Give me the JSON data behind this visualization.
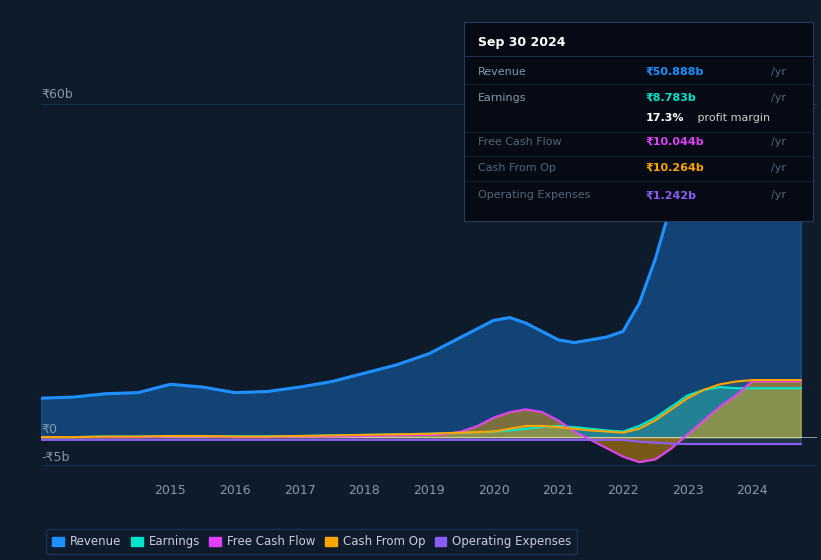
{
  "bg_color": "#0d1b2a",
  "plot_bg_color": "#0d1b2a",
  "revenue_color": "#1e90ff",
  "earnings_color": "#00e5cc",
  "free_cash_flow_color": "#e040fb",
  "cash_from_op_color": "#ffa500",
  "operating_expenses_color": "#8b5cf6",
  "grid_color": "#1e3a5f",
  "years": [
    2013.0,
    2013.5,
    2014.0,
    2014.5,
    2015.0,
    2015.5,
    2016.0,
    2016.5,
    2017.0,
    2017.5,
    2018.0,
    2018.5,
    2019.0,
    2019.25,
    2019.5,
    2019.75,
    2020.0,
    2020.25,
    2020.5,
    2020.75,
    2021.0,
    2021.25,
    2021.5,
    2021.75,
    2022.0,
    2022.25,
    2022.5,
    2022.75,
    2023.0,
    2023.25,
    2023.5,
    2023.75,
    2024.0,
    2024.5,
    2024.75
  ],
  "revenue": [
    7.0,
    7.2,
    7.8,
    8.0,
    9.5,
    9.0,
    8.0,
    8.2,
    9.0,
    10.0,
    11.5,
    13.0,
    15.0,
    16.5,
    18.0,
    19.5,
    21.0,
    21.5,
    20.5,
    19.0,
    17.5,
    17.0,
    17.5,
    18.0,
    19.0,
    24.0,
    32.0,
    42.0,
    50.0,
    54.0,
    53.0,
    52.0,
    50.888,
    50.888,
    50.888
  ],
  "earnings": [
    0.0,
    0.0,
    0.1,
    0.1,
    0.2,
    0.2,
    0.15,
    0.15,
    0.2,
    0.3,
    0.4,
    0.5,
    0.6,
    0.7,
    0.8,
    0.9,
    1.0,
    1.2,
    1.5,
    1.8,
    2.0,
    1.8,
    1.5,
    1.2,
    1.0,
    2.0,
    3.5,
    5.5,
    7.5,
    8.5,
    9.0,
    8.8,
    8.783,
    8.783,
    8.783
  ],
  "free_cash_flow": [
    0.0,
    0.0,
    0.0,
    0.0,
    0.1,
    0.1,
    0.0,
    0.0,
    0.1,
    0.1,
    0.2,
    0.3,
    0.4,
    0.5,
    1.0,
    2.0,
    3.5,
    4.5,
    5.0,
    4.5,
    3.0,
    1.0,
    -0.5,
    -2.0,
    -3.5,
    -4.5,
    -4.0,
    -2.0,
    0.5,
    3.0,
    5.5,
    7.5,
    10.044,
    10.044,
    10.044
  ],
  "cash_from_op": [
    0.0,
    0.0,
    0.1,
    0.1,
    0.2,
    0.2,
    0.1,
    0.1,
    0.2,
    0.3,
    0.4,
    0.5,
    0.6,
    0.7,
    0.8,
    0.9,
    1.0,
    1.5,
    2.0,
    2.0,
    1.8,
    1.5,
    1.2,
    1.0,
    0.8,
    1.5,
    3.0,
    5.0,
    7.0,
    8.5,
    9.5,
    10.0,
    10.264,
    10.264,
    10.264
  ],
  "operating_expenses": [
    -0.5,
    -0.5,
    -0.5,
    -0.5,
    -0.5,
    -0.5,
    -0.5,
    -0.5,
    -0.5,
    -0.5,
    -0.5,
    -0.5,
    -0.5,
    -0.5,
    -0.5,
    -0.5,
    -0.5,
    -0.5,
    -0.5,
    -0.5,
    -0.5,
    -0.5,
    -0.5,
    -0.5,
    -0.5,
    -0.8,
    -1.0,
    -1.2,
    -1.242,
    -1.242,
    -1.242,
    -1.242,
    -1.242,
    -1.242,
    -1.242
  ],
  "ylim": [
    -7.5,
    62
  ],
  "xlim": [
    2013.0,
    2025.0
  ],
  "xtick_positions": [
    2015,
    2016,
    2017,
    2018,
    2019,
    2020,
    2021,
    2022,
    2023,
    2024
  ],
  "xtick_labels": [
    "2015",
    "2016",
    "2017",
    "2018",
    "2019",
    "2020",
    "2021",
    "2022",
    "2023",
    "2024"
  ],
  "y60b_value": 60,
  "y0_value": 0,
  "ym5b_value": -5,
  "info_title": "Sep 30 2024",
  "info_rows": [
    {
      "label": "Revenue",
      "value": "₹50.888b",
      "unit": "/yr",
      "color": "#1e90ff",
      "dim_label": false
    },
    {
      "label": "Earnings",
      "value": "₹8.783b",
      "unit": "/yr",
      "color": "#00e5cc",
      "dim_label": false
    },
    {
      "label": "",
      "value": "17.3%",
      "unit": " profit margin",
      "color": "#ffffff",
      "dim_label": false
    },
    {
      "label": "Free Cash Flow",
      "value": "₹10.044b",
      "unit": "/yr",
      "color": "#e040fb",
      "dim_label": true
    },
    {
      "label": "Cash From Op",
      "value": "₹10.264b",
      "unit": "/yr",
      "color": "#ffa500",
      "dim_label": true
    },
    {
      "label": "Operating Expenses",
      "value": "₹1.242b",
      "unit": "/yr",
      "color": "#8b5cf6",
      "dim_label": true
    }
  ],
  "legend_items": [
    {
      "label": "Revenue",
      "color": "#1e90ff"
    },
    {
      "label": "Earnings",
      "color": "#00e5cc"
    },
    {
      "label": "Free Cash Flow",
      "color": "#e040fb"
    },
    {
      "label": "Cash From Op",
      "color": "#ffa500"
    },
    {
      "label": "Operating Expenses",
      "color": "#8b5cf6"
    }
  ]
}
